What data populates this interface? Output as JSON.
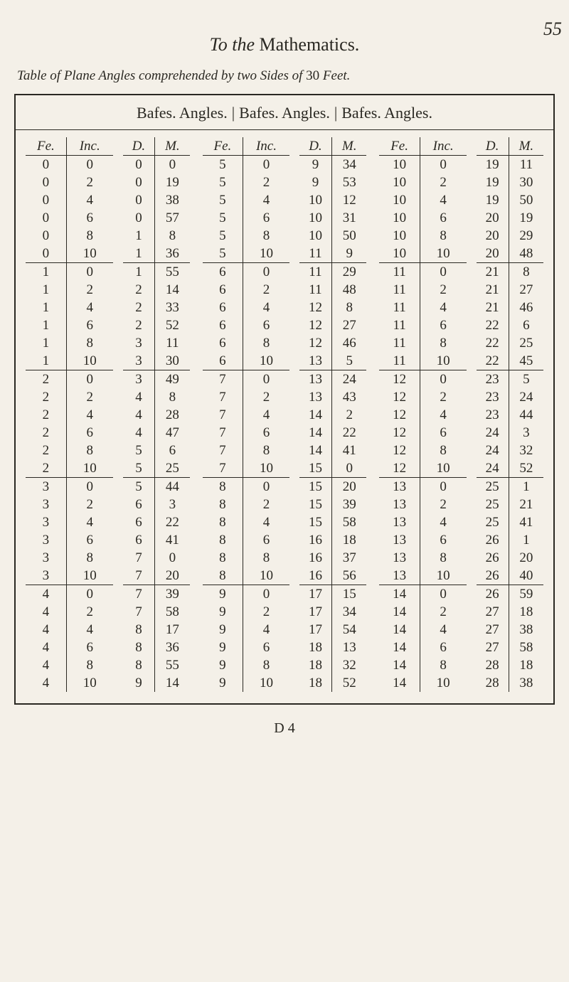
{
  "page_number": "55",
  "running_title_prefix": "To the",
  "running_title_main": " Mathematics.",
  "subtitle_prefix": "Table of Plane Angles comprehended by two Sides of ",
  "subtitle_num": "30",
  "subtitle_suffix": " Feet.",
  "header_unit": "Bafes. Angles.",
  "header_sep": " | ",
  "col_heads": {
    "fe": "Fe.",
    "inc": "Inc.",
    "d": "D.",
    "m": "M."
  },
  "signature": "D 4",
  "columns": [
    {
      "blocks": [
        [
          {
            "fe": "0",
            "inc": "0",
            "d": "0",
            "m": "0"
          },
          {
            "fe": "0",
            "inc": "2",
            "d": "0",
            "m": "19"
          },
          {
            "fe": "0",
            "inc": "4",
            "d": "0",
            "m": "38"
          },
          {
            "fe": "0",
            "inc": "6",
            "d": "0",
            "m": "57"
          },
          {
            "fe": "0",
            "inc": "8",
            "d": "1",
            "m": "8"
          },
          {
            "fe": "0",
            "inc": "10",
            "d": "1",
            "m": "36"
          }
        ],
        [
          {
            "fe": "1",
            "inc": "0",
            "d": "1",
            "m": "55"
          },
          {
            "fe": "1",
            "inc": "2",
            "d": "2",
            "m": "14"
          },
          {
            "fe": "1",
            "inc": "4",
            "d": "2",
            "m": "33"
          },
          {
            "fe": "1",
            "inc": "6",
            "d": "2",
            "m": "52"
          },
          {
            "fe": "1",
            "inc": "8",
            "d": "3",
            "m": "11"
          },
          {
            "fe": "1",
            "inc": "10",
            "d": "3",
            "m": "30"
          }
        ],
        [
          {
            "fe": "2",
            "inc": "0",
            "d": "3",
            "m": "49"
          },
          {
            "fe": "2",
            "inc": "2",
            "d": "4",
            "m": "8"
          },
          {
            "fe": "2",
            "inc": "4",
            "d": "4",
            "m": "28"
          },
          {
            "fe": "2",
            "inc": "6",
            "d": "4",
            "m": "47"
          },
          {
            "fe": "2",
            "inc": "8",
            "d": "5",
            "m": "6"
          },
          {
            "fe": "2",
            "inc": "10",
            "d": "5",
            "m": "25"
          }
        ],
        [
          {
            "fe": "3",
            "inc": "0",
            "d": "5",
            "m": "44"
          },
          {
            "fe": "3",
            "inc": "2",
            "d": "6",
            "m": "3"
          },
          {
            "fe": "3",
            "inc": "4",
            "d": "6",
            "m": "22"
          },
          {
            "fe": "3",
            "inc": "6",
            "d": "6",
            "m": "41"
          },
          {
            "fe": "3",
            "inc": "8",
            "d": "7",
            "m": "0"
          },
          {
            "fe": "3",
            "inc": "10",
            "d": "7",
            "m": "20"
          }
        ],
        [
          {
            "fe": "4",
            "inc": "0",
            "d": "7",
            "m": "39"
          },
          {
            "fe": "4",
            "inc": "2",
            "d": "7",
            "m": "58"
          },
          {
            "fe": "4",
            "inc": "4",
            "d": "8",
            "m": "17"
          },
          {
            "fe": "4",
            "inc": "6",
            "d": "8",
            "m": "36"
          },
          {
            "fe": "4",
            "inc": "8",
            "d": "8",
            "m": "55"
          },
          {
            "fe": "4",
            "inc": "10",
            "d": "9",
            "m": "14"
          }
        ]
      ]
    },
    {
      "blocks": [
        [
          {
            "fe": "5",
            "inc": "0",
            "d": "9",
            "m": "34"
          },
          {
            "fe": "5",
            "inc": "2",
            "d": "9",
            "m": "53"
          },
          {
            "fe": "5",
            "inc": "4",
            "d": "10",
            "m": "12"
          },
          {
            "fe": "5",
            "inc": "6",
            "d": "10",
            "m": "31"
          },
          {
            "fe": "5",
            "inc": "8",
            "d": "10",
            "m": "50"
          },
          {
            "fe": "5",
            "inc": "10",
            "d": "11",
            "m": "9"
          }
        ],
        [
          {
            "fe": "6",
            "inc": "0",
            "d": "11",
            "m": "29"
          },
          {
            "fe": "6",
            "inc": "2",
            "d": "11",
            "m": "48"
          },
          {
            "fe": "6",
            "inc": "4",
            "d": "12",
            "m": "8"
          },
          {
            "fe": "6",
            "inc": "6",
            "d": "12",
            "m": "27"
          },
          {
            "fe": "6",
            "inc": "8",
            "d": "12",
            "m": "46"
          },
          {
            "fe": "6",
            "inc": "10",
            "d": "13",
            "m": "5"
          }
        ],
        [
          {
            "fe": "7",
            "inc": "0",
            "d": "13",
            "m": "24"
          },
          {
            "fe": "7",
            "inc": "2",
            "d": "13",
            "m": "43"
          },
          {
            "fe": "7",
            "inc": "4",
            "d": "14",
            "m": "2"
          },
          {
            "fe": "7",
            "inc": "6",
            "d": "14",
            "m": "22"
          },
          {
            "fe": "7",
            "inc": "8",
            "d": "14",
            "m": "41"
          },
          {
            "fe": "7",
            "inc": "10",
            "d": "15",
            "m": "0"
          }
        ],
        [
          {
            "fe": "8",
            "inc": "0",
            "d": "15",
            "m": "20"
          },
          {
            "fe": "8",
            "inc": "2",
            "d": "15",
            "m": "39"
          },
          {
            "fe": "8",
            "inc": "4",
            "d": "15",
            "m": "58"
          },
          {
            "fe": "8",
            "inc": "6",
            "d": "16",
            "m": "18"
          },
          {
            "fe": "8",
            "inc": "8",
            "d": "16",
            "m": "37"
          },
          {
            "fe": "8",
            "inc": "10",
            "d": "16",
            "m": "56"
          }
        ],
        [
          {
            "fe": "9",
            "inc": "0",
            "d": "17",
            "m": "15"
          },
          {
            "fe": "9",
            "inc": "2",
            "d": "17",
            "m": "34"
          },
          {
            "fe": "9",
            "inc": "4",
            "d": "17",
            "m": "54"
          },
          {
            "fe": "9",
            "inc": "6",
            "d": "18",
            "m": "13"
          },
          {
            "fe": "9",
            "inc": "8",
            "d": "18",
            "m": "32"
          },
          {
            "fe": "9",
            "inc": "10",
            "d": "18",
            "m": "52"
          }
        ]
      ]
    },
    {
      "blocks": [
        [
          {
            "fe": "10",
            "inc": "0",
            "d": "19",
            "m": "11"
          },
          {
            "fe": "10",
            "inc": "2",
            "d": "19",
            "m": "30"
          },
          {
            "fe": "10",
            "inc": "4",
            "d": "19",
            "m": "50"
          },
          {
            "fe": "10",
            "inc": "6",
            "d": "20",
            "m": "19"
          },
          {
            "fe": "10",
            "inc": "8",
            "d": "20",
            "m": "29"
          },
          {
            "fe": "10",
            "inc": "10",
            "d": "20",
            "m": "48"
          }
        ],
        [
          {
            "fe": "11",
            "inc": "0",
            "d": "21",
            "m": "8"
          },
          {
            "fe": "11",
            "inc": "2",
            "d": "21",
            "m": "27"
          },
          {
            "fe": "11",
            "inc": "4",
            "d": "21",
            "m": "46"
          },
          {
            "fe": "11",
            "inc": "6",
            "d": "22",
            "m": "6"
          },
          {
            "fe": "11",
            "inc": "8",
            "d": "22",
            "m": "25"
          },
          {
            "fe": "11",
            "inc": "10",
            "d": "22",
            "m": "45"
          }
        ],
        [
          {
            "fe": "12",
            "inc": "0",
            "d": "23",
            "m": "5"
          },
          {
            "fe": "12",
            "inc": "2",
            "d": "23",
            "m": "24"
          },
          {
            "fe": "12",
            "inc": "4",
            "d": "23",
            "m": "44"
          },
          {
            "fe": "12",
            "inc": "6",
            "d": "24",
            "m": "3"
          },
          {
            "fe": "12",
            "inc": "8",
            "d": "24",
            "m": "32"
          },
          {
            "fe": "12",
            "inc": "10",
            "d": "24",
            "m": "52"
          }
        ],
        [
          {
            "fe": "13",
            "inc": "0",
            "d": "25",
            "m": "1"
          },
          {
            "fe": "13",
            "inc": "2",
            "d": "25",
            "m": "21"
          },
          {
            "fe": "13",
            "inc": "4",
            "d": "25",
            "m": "41"
          },
          {
            "fe": "13",
            "inc": "6",
            "d": "26",
            "m": "1"
          },
          {
            "fe": "13",
            "inc": "8",
            "d": "26",
            "m": "20"
          },
          {
            "fe": "13",
            "inc": "10",
            "d": "26",
            "m": "40"
          }
        ],
        [
          {
            "fe": "14",
            "inc": "0",
            "d": "26",
            "m": "59"
          },
          {
            "fe": "14",
            "inc": "2",
            "d": "27",
            "m": "18"
          },
          {
            "fe": "14",
            "inc": "4",
            "d": "27",
            "m": "38"
          },
          {
            "fe": "14",
            "inc": "6",
            "d": "27",
            "m": "58"
          },
          {
            "fe": "14",
            "inc": "8",
            "d": "28",
            "m": "18"
          },
          {
            "fe": "14",
            "inc": "10",
            "d": "28",
            "m": "38"
          }
        ]
      ]
    }
  ]
}
